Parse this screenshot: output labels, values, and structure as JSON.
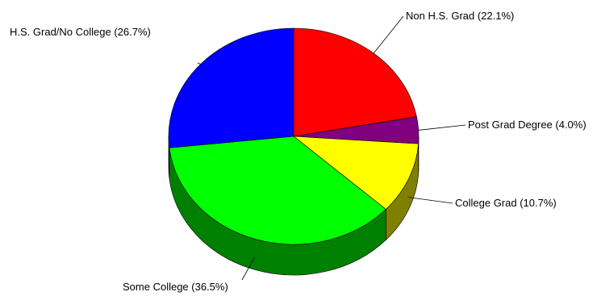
{
  "chart_data": {
    "type": "pie",
    "style": "3d",
    "title": "",
    "slices": [
      {
        "label": "Non H.S. Grad (22.1%)",
        "value": 22.1,
        "color": "#ff0000",
        "side_color": "#800000"
      },
      {
        "label": "Post Grad Degree (4.0%)",
        "value": 4.0,
        "color": "#800080",
        "side_color": "#400040"
      },
      {
        "label": "College Grad (10.7%)",
        "value": 10.7,
        "color": "#ffff00",
        "side_color": "#808000"
      },
      {
        "label": "Some College (36.5%)",
        "value": 36.5,
        "color": "#00ff00",
        "side_color": "#008000"
      },
      {
        "label": "H.S. Grad/No College (26.7%)",
        "value": 26.7,
        "color": "#0000ff",
        "side_color": "#000080"
      }
    ]
  }
}
